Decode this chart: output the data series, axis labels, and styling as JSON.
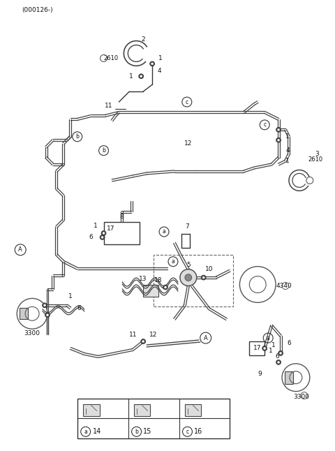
{
  "title": "(000126-)",
  "bg_color": "#ffffff",
  "line_color": "#333333",
  "fig_width": 4.8,
  "fig_height": 6.46,
  "dpi": 100,
  "legend_items": [
    {
      "symbol": "a",
      "number": "14"
    },
    {
      "symbol": "b",
      "number": "15"
    },
    {
      "symbol": "c",
      "number": "16"
    }
  ]
}
